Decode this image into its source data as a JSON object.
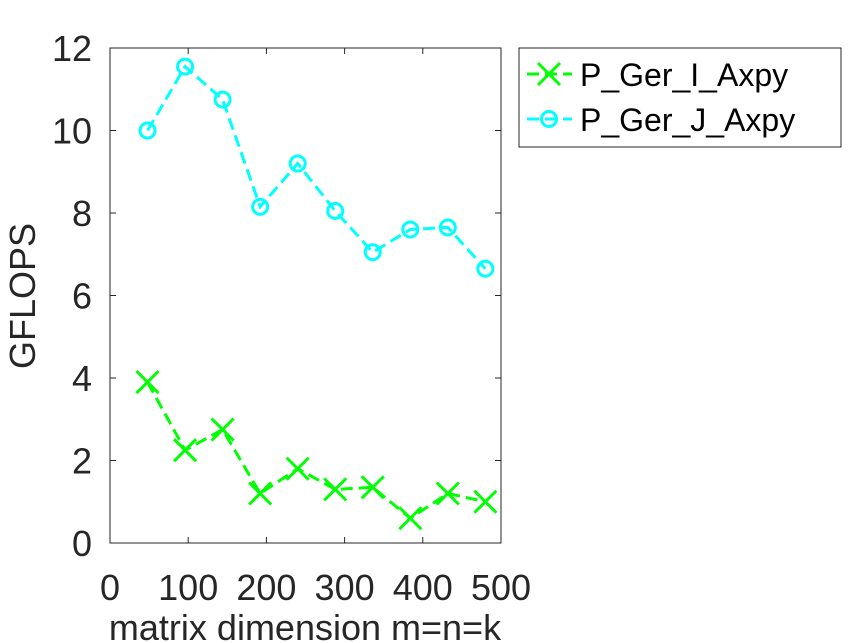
{
  "chart_data": {
    "type": "line",
    "title": "",
    "xlabel": "matrix dimension m=n=k",
    "ylabel": "GFLOPS",
    "xlim": [
      0,
      500
    ],
    "ylim": [
      0,
      12
    ],
    "xticks": [
      0,
      100,
      200,
      300,
      400,
      500
    ],
    "yticks": [
      0,
      2,
      4,
      6,
      8,
      10,
      12
    ],
    "xtick_labels": [
      "0",
      "100",
      "200",
      "300",
      "400",
      "500"
    ],
    "ytick_labels": [
      "0",
      "2",
      "4",
      "6",
      "8",
      "10",
      "12"
    ],
    "grid": false,
    "legend_position": "outside top-right",
    "x": [
      48,
      96,
      144,
      192,
      240,
      288,
      336,
      384,
      432,
      480
    ],
    "series": [
      {
        "name": "P_Ger_I_Axpy",
        "color": "#00ff00",
        "marker": "x",
        "line_style": "dashed",
        "values": [
          3.9,
          2.25,
          2.75,
          1.2,
          1.8,
          1.3,
          1.35,
          0.6,
          1.2,
          1.0
        ]
      },
      {
        "name": "P_Ger_J_Axpy",
        "color": "#00ffff",
        "marker": "circle",
        "line_style": "dashed",
        "values": [
          10.0,
          11.55,
          10.75,
          8.15,
          9.2,
          8.05,
          7.05,
          7.6,
          7.65,
          6.65
        ]
      }
    ]
  }
}
